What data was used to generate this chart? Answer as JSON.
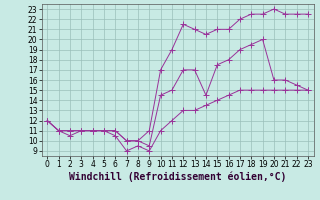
{
  "title": "",
  "xlabel": "Windchill (Refroidissement éolien,°C)",
  "background_color": "#c8eae4",
  "grid_color": "#9bbfba",
  "line_color": "#993399",
  "xlim": [
    -0.5,
    23.5
  ],
  "ylim": [
    8.5,
    23.5
  ],
  "yticks": [
    9,
    10,
    11,
    12,
    13,
    14,
    15,
    16,
    17,
    18,
    19,
    20,
    21,
    22,
    23
  ],
  "xticks": [
    0,
    1,
    2,
    3,
    4,
    5,
    6,
    7,
    8,
    9,
    10,
    11,
    12,
    13,
    14,
    15,
    16,
    17,
    18,
    19,
    20,
    21,
    22,
    23
  ],
  "series1_x": [
    0,
    1,
    2,
    3,
    4,
    5,
    6,
    7,
    8,
    9,
    10,
    11,
    12,
    13,
    14,
    15,
    16,
    17,
    18,
    19,
    20,
    21,
    22,
    23
  ],
  "series1_y": [
    12,
    11,
    10.5,
    11,
    11,
    11,
    10.5,
    9,
    9.5,
    9,
    11,
    12,
    13,
    13,
    13.5,
    14,
    14.5,
    15,
    15,
    15,
    15,
    15,
    15,
    15
  ],
  "series2_x": [
    0,
    1,
    2,
    3,
    4,
    5,
    6,
    7,
    8,
    9,
    10,
    11,
    12,
    13,
    14,
    15,
    16,
    17,
    18,
    19,
    20,
    21,
    22,
    23
  ],
  "series2_y": [
    12,
    11,
    11,
    11,
    11,
    11,
    11,
    10,
    10,
    11,
    17,
    19,
    21.5,
    21,
    20.5,
    21,
    21,
    22,
    22.5,
    22.5,
    23,
    22.5,
    22.5,
    22.5
  ],
  "series3_x": [
    0,
    1,
    2,
    3,
    4,
    5,
    6,
    7,
    8,
    9,
    10,
    11,
    12,
    13,
    14,
    15,
    16,
    17,
    18,
    19,
    20,
    21,
    22,
    23
  ],
  "series3_y": [
    12,
    11,
    11,
    11,
    11,
    11,
    11,
    10,
    10,
    9.5,
    14.5,
    15,
    17,
    17,
    14.5,
    17.5,
    18,
    19,
    19.5,
    20,
    16,
    16,
    15.5,
    15
  ],
  "tick_fontsize": 5.5,
  "label_fontsize": 7.0,
  "marker_size": 2.0
}
